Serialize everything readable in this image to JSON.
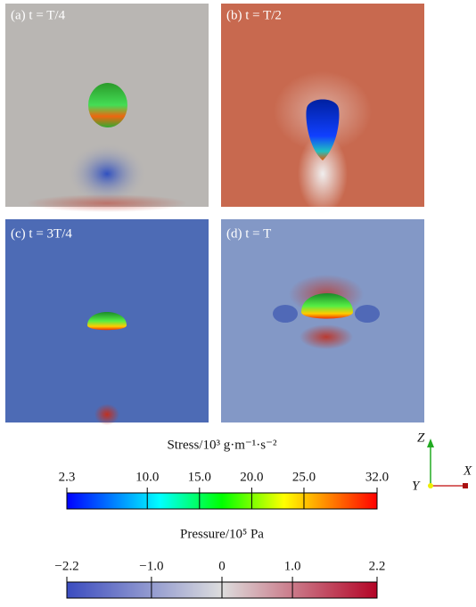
{
  "panels": [
    {
      "label": "(a) t = T/4"
    },
    {
      "label": "(b) t = T/2"
    },
    {
      "label": "(c) t = 3T/4"
    },
    {
      "label": "(d) t = T"
    }
  ],
  "colorbars": [
    {
      "title": "Stress/10³ g·m⁻¹·s⁻²",
      "range": [
        2.3,
        32.0
      ],
      "ticks": [
        {
          "value": 2.3,
          "label": "2.3"
        },
        {
          "value": 10.0,
          "label": "10.0"
        },
        {
          "value": 15.0,
          "label": "15.0"
        },
        {
          "value": 20.0,
          "label": "20.0"
        },
        {
          "value": 25.0,
          "label": "25.0"
        },
        {
          "value": 32.0,
          "label": "32.0"
        }
      ]
    },
    {
      "title": "Pressure/10⁵ Pa",
      "range": [
        -2.2,
        2.2
      ],
      "ticks": [
        {
          "value": -2.2,
          "label": "−2.2"
        },
        {
          "value": -1.0,
          "label": "−1.0"
        },
        0,
        {
          "value": 1.0,
          "label": "1.0"
        },
        {
          "value": 2.2,
          "label": "2.2"
        }
      ]
    }
  ],
  "axes": {
    "z": "Z",
    "x": "X",
    "y": "Y"
  }
}
